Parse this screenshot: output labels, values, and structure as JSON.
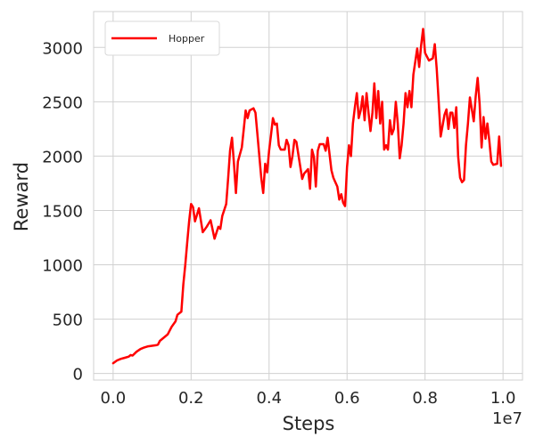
{
  "chart_data": {
    "type": "line",
    "title": "",
    "xlabel": "Steps",
    "ylabel": "Reward",
    "x_offset_label": "1e7",
    "xlim": [
      -0.05,
      1.05
    ],
    "ylim": [
      -60,
      3330
    ],
    "x_ticks": [
      0.0,
      0.2,
      0.4,
      0.6,
      0.8,
      1.0
    ],
    "x_tick_labels": [
      "0.0",
      "0.2",
      "0.4",
      "0.6",
      "0.8",
      "1.0"
    ],
    "y_ticks": [
      0,
      500,
      1000,
      1500,
      2000,
      2500,
      3000
    ],
    "y_tick_labels": [
      "0",
      "500",
      "1000",
      "1500",
      "2000",
      "2500",
      "3000"
    ],
    "grid": true,
    "legend_position": "top-left",
    "series": [
      {
        "name": "Hopper",
        "color": "#ff0000",
        "points": [
          [
            0.0,
            95
          ],
          [
            0.01,
            120
          ],
          [
            0.02,
            135
          ],
          [
            0.03,
            145
          ],
          [
            0.04,
            155
          ],
          [
            0.045,
            170
          ],
          [
            0.05,
            165
          ],
          [
            0.06,
            200
          ],
          [
            0.07,
            225
          ],
          [
            0.08,
            240
          ],
          [
            0.09,
            250
          ],
          [
            0.1,
            255
          ],
          [
            0.11,
            260
          ],
          [
            0.115,
            265
          ],
          [
            0.12,
            300
          ],
          [
            0.13,
            330
          ],
          [
            0.14,
            360
          ],
          [
            0.15,
            430
          ],
          [
            0.16,
            480
          ],
          [
            0.165,
            540
          ],
          [
            0.175,
            570
          ],
          [
            0.18,
            820
          ],
          [
            0.185,
            1000
          ],
          [
            0.19,
            1200
          ],
          [
            0.195,
            1400
          ],
          [
            0.2,
            1560
          ],
          [
            0.205,
            1530
          ],
          [
            0.21,
            1400
          ],
          [
            0.215,
            1460
          ],
          [
            0.22,
            1520
          ],
          [
            0.23,
            1300
          ],
          [
            0.24,
            1350
          ],
          [
            0.25,
            1410
          ],
          [
            0.26,
            1240
          ],
          [
            0.27,
            1350
          ],
          [
            0.275,
            1330
          ],
          [
            0.28,
            1450
          ],
          [
            0.29,
            1560
          ],
          [
            0.295,
            1800
          ],
          [
            0.3,
            2050
          ],
          [
            0.305,
            2170
          ],
          [
            0.31,
            1930
          ],
          [
            0.315,
            1660
          ],
          [
            0.32,
            1950
          ],
          [
            0.33,
            2080
          ],
          [
            0.335,
            2250
          ],
          [
            0.34,
            2420
          ],
          [
            0.345,
            2350
          ],
          [
            0.35,
            2420
          ],
          [
            0.36,
            2440
          ],
          [
            0.365,
            2400
          ],
          [
            0.37,
            2200
          ],
          [
            0.38,
            1800
          ],
          [
            0.385,
            1660
          ],
          [
            0.39,
            1930
          ],
          [
            0.395,
            1850
          ],
          [
            0.4,
            2050
          ],
          [
            0.405,
            2200
          ],
          [
            0.41,
            2350
          ],
          [
            0.415,
            2290
          ],
          [
            0.42,
            2300
          ],
          [
            0.425,
            2100
          ],
          [
            0.43,
            2060
          ],
          [
            0.44,
            2060
          ],
          [
            0.445,
            2150
          ],
          [
            0.45,
            2100
          ],
          [
            0.455,
            1900
          ],
          [
            0.46,
            2000
          ],
          [
            0.465,
            2150
          ],
          [
            0.47,
            2130
          ],
          [
            0.48,
            1900
          ],
          [
            0.485,
            1790
          ],
          [
            0.49,
            1840
          ],
          [
            0.5,
            1880
          ],
          [
            0.505,
            1700
          ],
          [
            0.51,
            2060
          ],
          [
            0.515,
            1990
          ],
          [
            0.52,
            1720
          ],
          [
            0.525,
            2050
          ],
          [
            0.53,
            2110
          ],
          [
            0.54,
            2110
          ],
          [
            0.545,
            2050
          ],
          [
            0.55,
            2170
          ],
          [
            0.56,
            1870
          ],
          [
            0.565,
            1800
          ],
          [
            0.57,
            1760
          ],
          [
            0.575,
            1720
          ],
          [
            0.58,
            1600
          ],
          [
            0.585,
            1650
          ],
          [
            0.59,
            1570
          ],
          [
            0.595,
            1540
          ],
          [
            0.6,
            1900
          ],
          [
            0.605,
            2100
          ],
          [
            0.61,
            2000
          ],
          [
            0.615,
            2300
          ],
          [
            0.62,
            2450
          ],
          [
            0.625,
            2580
          ],
          [
            0.63,
            2350
          ],
          [
            0.635,
            2420
          ],
          [
            0.64,
            2550
          ],
          [
            0.645,
            2330
          ],
          [
            0.65,
            2580
          ],
          [
            0.655,
            2400
          ],
          [
            0.66,
            2230
          ],
          [
            0.665,
            2400
          ],
          [
            0.67,
            2670
          ],
          [
            0.675,
            2350
          ],
          [
            0.68,
            2600
          ],
          [
            0.685,
            2300
          ],
          [
            0.69,
            2500
          ],
          [
            0.695,
            2060
          ],
          [
            0.7,
            2100
          ],
          [
            0.705,
            2060
          ],
          [
            0.71,
            2330
          ],
          [
            0.715,
            2200
          ],
          [
            0.72,
            2250
          ],
          [
            0.725,
            2500
          ],
          [
            0.73,
            2300
          ],
          [
            0.735,
            1980
          ],
          [
            0.74,
            2100
          ],
          [
            0.745,
            2300
          ],
          [
            0.75,
            2580
          ],
          [
            0.755,
            2450
          ],
          [
            0.76,
            2600
          ],
          [
            0.765,
            2450
          ],
          [
            0.77,
            2750
          ],
          [
            0.78,
            2990
          ],
          [
            0.785,
            2820
          ],
          [
            0.79,
            3020
          ],
          [
            0.795,
            3170
          ],
          [
            0.8,
            2950
          ],
          [
            0.81,
            2880
          ],
          [
            0.82,
            2900
          ],
          [
            0.825,
            3030
          ],
          [
            0.83,
            2800
          ],
          [
            0.835,
            2500
          ],
          [
            0.84,
            2180
          ],
          [
            0.85,
            2380
          ],
          [
            0.855,
            2430
          ],
          [
            0.86,
            2250
          ],
          [
            0.865,
            2400
          ],
          [
            0.87,
            2400
          ],
          [
            0.875,
            2260
          ],
          [
            0.88,
            2450
          ],
          [
            0.885,
            2000
          ],
          [
            0.89,
            1800
          ],
          [
            0.895,
            1760
          ],
          [
            0.9,
            1780
          ],
          [
            0.905,
            2100
          ],
          [
            0.91,
            2300
          ],
          [
            0.915,
            2540
          ],
          [
            0.92,
            2430
          ],
          [
            0.925,
            2320
          ],
          [
            0.93,
            2550
          ],
          [
            0.935,
            2720
          ],
          [
            0.94,
            2480
          ],
          [
            0.945,
            2080
          ],
          [
            0.95,
            2360
          ],
          [
            0.955,
            2160
          ],
          [
            0.96,
            2300
          ],
          [
            0.965,
            2140
          ],
          [
            0.97,
            1950
          ],
          [
            0.975,
            1920
          ],
          [
            0.985,
            1930
          ],
          [
            0.99,
            2180
          ],
          [
            0.995,
            1910
          ]
        ]
      }
    ]
  }
}
